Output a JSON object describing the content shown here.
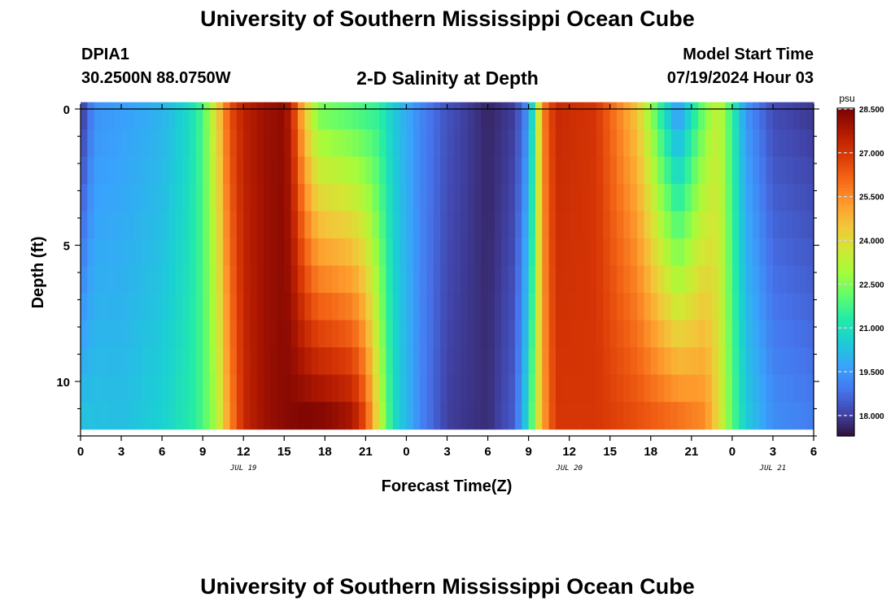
{
  "header": {
    "title": "University of Southern Mississippi Ocean Cube",
    "station": "DPIA1",
    "coords": "30.2500N  88.0750W",
    "plot_title": "2-D Salinity at Depth",
    "start_label": "Model Start Time",
    "start_value": "07/19/2024 Hour 03"
  },
  "footer": {
    "title": "University of Southern Mississippi Ocean Cube"
  },
  "chart_data": {
    "type": "heatmap",
    "title": "2-D Salinity at Depth",
    "xlabel": "Forecast Time(Z)",
    "ylabel": "Depth (ft)",
    "units": "psu",
    "x_range_hours": [
      0,
      54
    ],
    "x_tick_labels": [
      "0",
      "3",
      "6",
      "9",
      "12",
      "15",
      "18",
      "21",
      "0",
      "3",
      "6",
      "9",
      "12",
      "15",
      "18",
      "21",
      "0",
      "3",
      "6"
    ],
    "date_labels": [
      {
        "text": "JUL 19",
        "hour": 12
      },
      {
        "text": "JUL 20",
        "hour": 36
      },
      {
        "text": "JUL 21",
        "hour": 51
      }
    ],
    "y_range_ft": [
      0,
      12
    ],
    "y_tick_values": [
      0,
      5,
      10
    ],
    "y_tick_labels": [
      "0",
      "5",
      "10"
    ],
    "colorbar": {
      "min": 17.3,
      "max": 28.5,
      "tick_values": [
        28.5,
        27.0,
        25.5,
        24.0,
        22.5,
        21.0,
        19.5,
        18.0
      ],
      "tick_labels": [
        "28.500",
        "27.000",
        "25.500",
        "24.000",
        "22.500",
        "21.000",
        "19.500",
        "18.000"
      ]
    },
    "depth_layers_ft": [
      0.25,
      1.25,
      2.25,
      3.25,
      4.25,
      5.25,
      6.25,
      7.25,
      8.25,
      9.25,
      10.25,
      11.25
    ],
    "surface_salinity_psu": [
      [
        0,
        17.8
      ],
      [
        1,
        19.4
      ],
      [
        3,
        19.6
      ],
      [
        6,
        20.0
      ],
      [
        8,
        20.8
      ],
      [
        9,
        21.8
      ],
      [
        10,
        24.0
      ],
      [
        11,
        26.5
      ],
      [
        12,
        27.5
      ],
      [
        13.5,
        28.0
      ],
      [
        15,
        28.2
      ],
      [
        15.5,
        27.5
      ],
      [
        16.5,
        24.5
      ],
      [
        17.5,
        22.5
      ],
      [
        20,
        22.0
      ],
      [
        22,
        21.5
      ],
      [
        23,
        20.5
      ],
      [
        25,
        19.2
      ],
      [
        27,
        18.3
      ],
      [
        30,
        17.6
      ],
      [
        32,
        18.0
      ],
      [
        33,
        19.5
      ],
      [
        33.5,
        22.0
      ],
      [
        34,
        25.5
      ],
      [
        35,
        27.3
      ],
      [
        38,
        27.0
      ],
      [
        41,
        24.5
      ],
      [
        43,
        21.0
      ],
      [
        44,
        19.5
      ],
      [
        46,
        22.5
      ],
      [
        47,
        23.5
      ],
      [
        48,
        21.5
      ],
      [
        49,
        19.5
      ],
      [
        51,
        18.2
      ],
      [
        54,
        17.9
      ]
    ],
    "bottom_salinity_psu": [
      [
        0,
        20.3
      ],
      [
        3,
        20.2
      ],
      [
        6,
        20.6
      ],
      [
        8,
        21.2
      ],
      [
        9,
        21.8
      ],
      [
        10,
        23.0
      ],
      [
        11,
        25.5
      ],
      [
        12,
        27.3
      ],
      [
        13.5,
        28.0
      ],
      [
        15,
        28.3
      ],
      [
        16.5,
        28.4
      ],
      [
        18,
        28.3
      ],
      [
        20,
        27.8
      ],
      [
        21,
        26.5
      ],
      [
        22,
        23.5
      ],
      [
        23,
        21.0
      ],
      [
        25,
        19.2
      ],
      [
        27,
        18.0
      ],
      [
        30,
        17.7
      ],
      [
        32,
        18.5
      ],
      [
        33,
        21.0
      ],
      [
        34,
        25.0
      ],
      [
        35,
        27.0
      ],
      [
        38,
        27.0
      ],
      [
        41,
        26.5
      ],
      [
        46,
        25.5
      ],
      [
        47,
        24.0
      ],
      [
        48,
        22.0
      ],
      [
        49,
        20.5
      ],
      [
        51,
        19.3
      ],
      [
        54,
        19.0
      ]
    ]
  }
}
